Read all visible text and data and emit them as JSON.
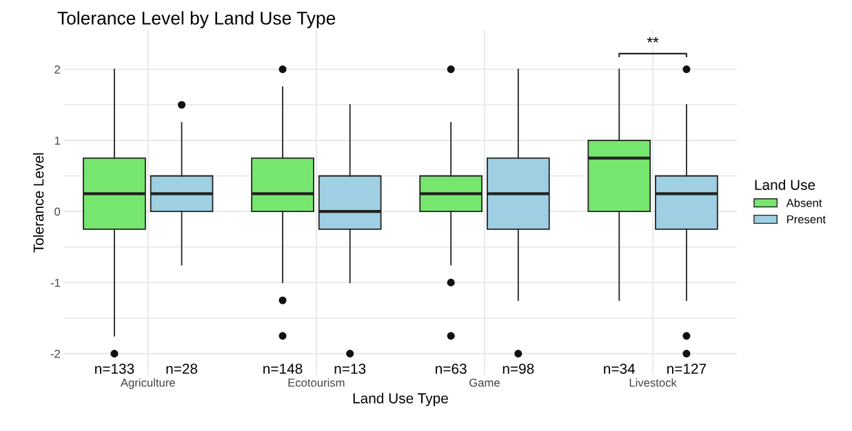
{
  "chart_data": {
    "type": "box",
    "title": "Tolerance Level by Land Use Type",
    "xlabel": "Land Use Type",
    "ylabel": "Tolerance Level",
    "legend_title": "Land Use",
    "categories": [
      "Agriculture",
      "Ecotourism",
      "Game",
      "Livestock"
    ],
    "series": [
      {
        "name": "Absent",
        "color": "#77e66f",
        "boxes": [
          {
            "low": -1.75,
            "q1": -0.25,
            "median": 0.25,
            "q3": 0.75,
            "high": 2,
            "outliers": [
              -2
            ]
          },
          {
            "low": -1,
            "q1": 0,
            "median": 0.25,
            "q3": 0.75,
            "high": 1.75,
            "outliers": [
              2,
              -1.25,
              -1.75
            ]
          },
          {
            "low": -0.75,
            "q1": 0,
            "median": 0.25,
            "q3": 0.5,
            "high": 1.25,
            "outliers": [
              2,
              -1,
              -1.75
            ]
          },
          {
            "low": -1.25,
            "q1": 0,
            "median": 0.75,
            "q3": 1,
            "high": 2
          }
        ]
      },
      {
        "name": "Present",
        "color": "#9ecfe3",
        "boxes": [
          {
            "low": -0.75,
            "q1": 0,
            "median": 0.25,
            "q3": 0.5,
            "high": 1.25,
            "outliers": [
              1.5
            ]
          },
          {
            "low": -1,
            "q1": -0.25,
            "median": 0,
            "q3": 0.5,
            "high": 1.5,
            "outliers": [
              -2
            ]
          },
          {
            "low": -1.25,
            "q1": -0.25,
            "median": 0.25,
            "q3": 0.75,
            "high": 2,
            "outliers": [
              -2
            ]
          },
          {
            "low": -1.25,
            "q1": -0.25,
            "median": 0.25,
            "q3": 0.5,
            "high": 1.5,
            "outliers": [
              2,
              -1.75,
              -2
            ]
          }
        ]
      }
    ],
    "ylim": [
      -2.3,
      2.55
    ],
    "yticks": [
      -2,
      {
        "value": -1.5,
        "label": null
      },
      -1,
      {
        "value": -0.5,
        "label": null
      },
      0,
      {
        "value": 0.5,
        "label": null
      },
      1,
      {
        "value": 1.5,
        "label": null
      },
      2
    ],
    "grid": true,
    "legend": "right",
    "annotations": [
      "n=133",
      "n=28",
      "n=148",
      "n=13",
      "n=63",
      "n=98",
      "n=34",
      "n=127",
      "**"
    ]
  }
}
